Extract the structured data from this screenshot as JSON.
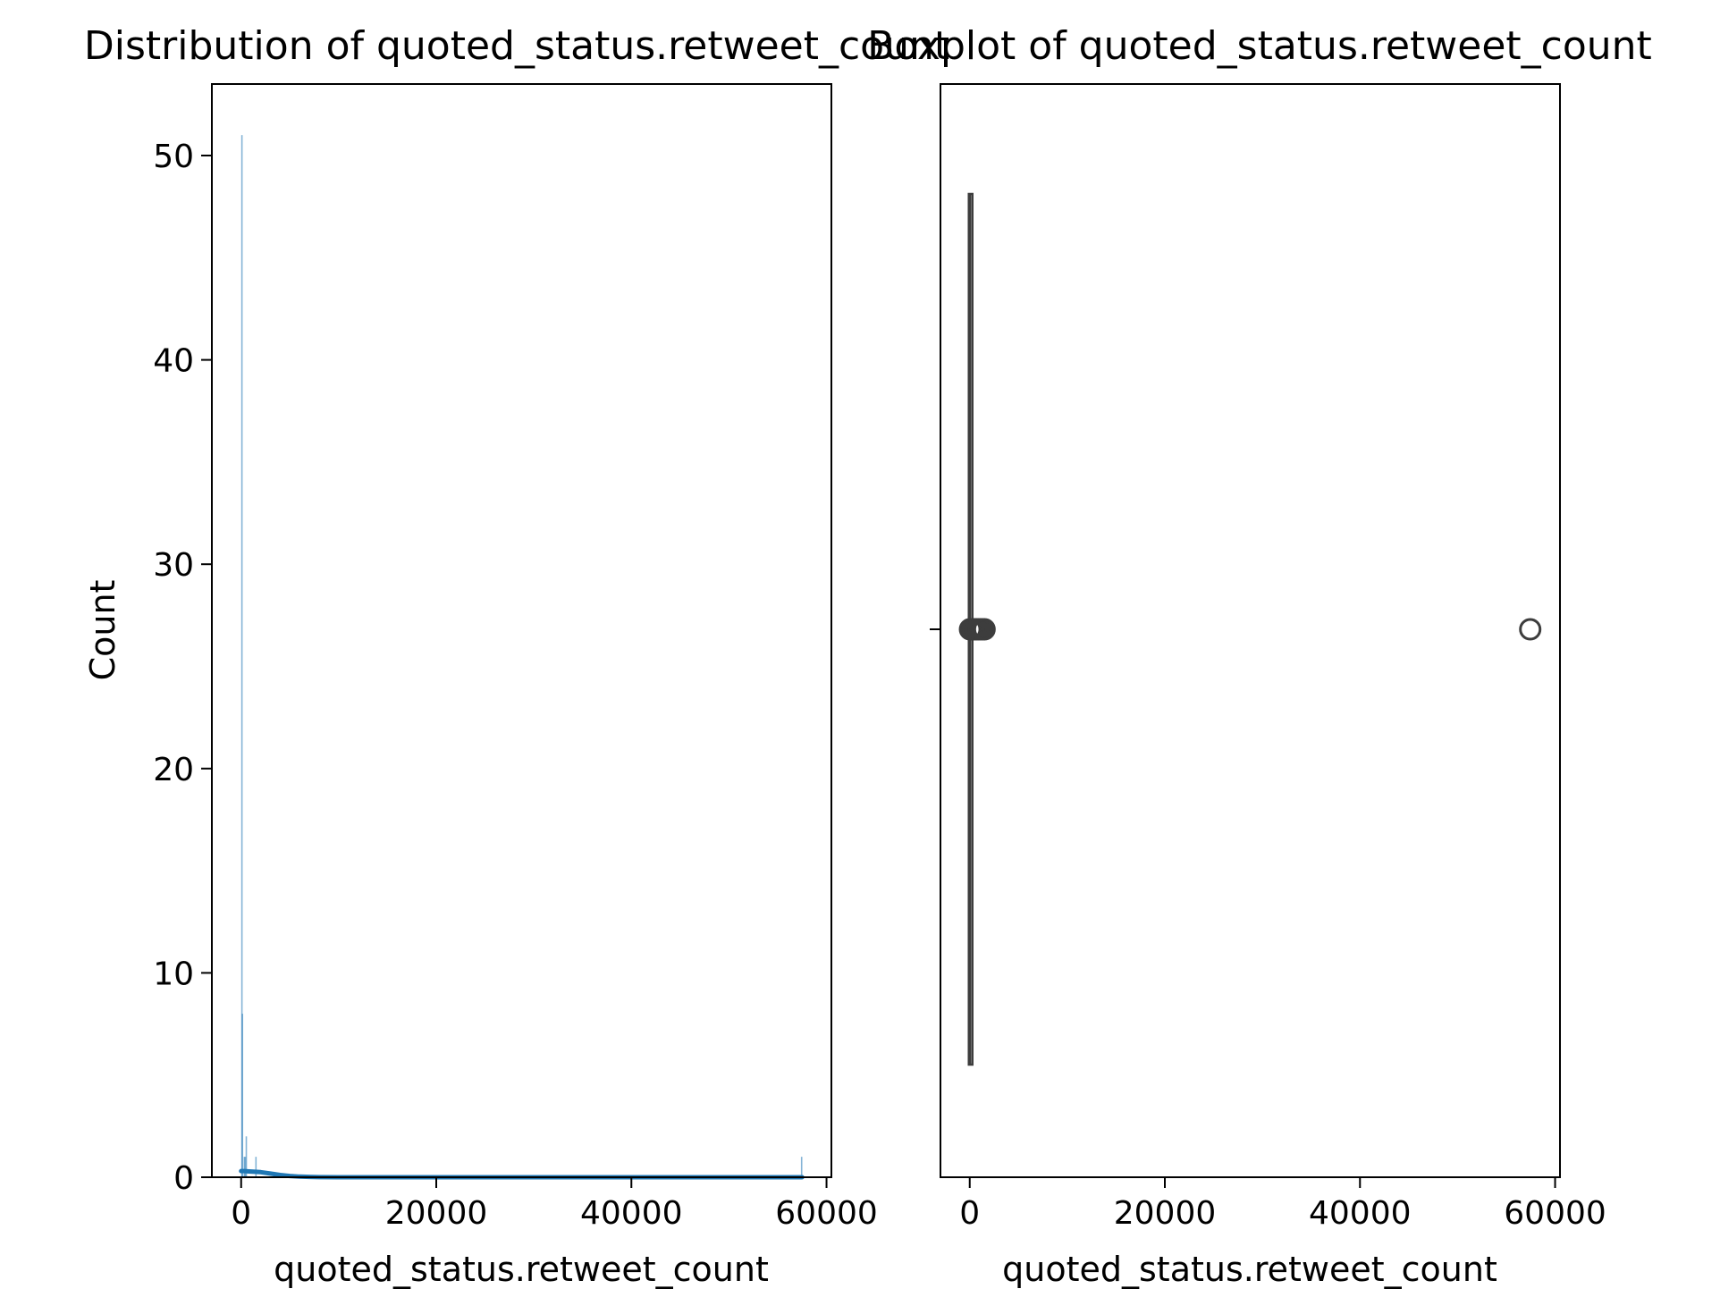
{
  "figure": {
    "background": "#ffffff"
  },
  "chart_data": [
    {
      "type": "bar",
      "title": "Distribution of quoted_status.retweet_count",
      "xlabel": "quoted_status.retweet_count",
      "ylabel": "Count",
      "xlim": [
        -3000,
        60500
      ],
      "ylim": [
        0,
        53.5
      ],
      "xticks": [
        0,
        20000,
        40000,
        60000
      ],
      "xtick_labels": [
        "0",
        "20000",
        "40000",
        "60000"
      ],
      "yticks": [
        0,
        10,
        20,
        30,
        40,
        50
      ],
      "ytick_labels": [
        "0",
        "10",
        "20",
        "30",
        "40",
        "50"
      ],
      "grid": false,
      "bar_color": "#1f77b4",
      "kde_color": "#1f77b4",
      "bins": [
        {
          "x": 80,
          "count": 51
        },
        {
          "x": 130,
          "count": 8
        },
        {
          "x": 330,
          "count": 1
        },
        {
          "x": 430,
          "count": 1
        },
        {
          "x": 530,
          "count": 2
        },
        {
          "x": 1520,
          "count": 1
        },
        {
          "x": 57450,
          "count": 1
        }
      ],
      "kde": {
        "x": [
          0,
          300,
          1000,
          2000,
          3000,
          4000,
          5000,
          6000,
          7000,
          8000,
          10000,
          20000,
          40000,
          57500
        ],
        "y": [
          0.3,
          0.3,
          0.28,
          0.25,
          0.18,
          0.11,
          0.06,
          0.03,
          0.015,
          0.005,
          0.002,
          0.0005,
          0.0002,
          0.0002
        ]
      }
    },
    {
      "type": "box",
      "title": "Boxplot of quoted_status.retweet_count",
      "xlabel": "quoted_status.retweet_count",
      "xlim": [
        -3000,
        60500
      ],
      "xticks": [
        0,
        20000,
        40000,
        60000
      ],
      "xtick_labels": [
        "0",
        "20000",
        "40000",
        "60000"
      ],
      "grid": false,
      "box_color": "#3d3d3d",
      "box": {
        "q1": 0,
        "median": 0,
        "q3": 1,
        "whisker_low": 0,
        "whisker_high": 2
      },
      "outliers": [
        30,
        60,
        100,
        150,
        220,
        300,
        400,
        530,
        700,
        900,
        1100,
        1300,
        1520,
        57450
      ]
    }
  ]
}
